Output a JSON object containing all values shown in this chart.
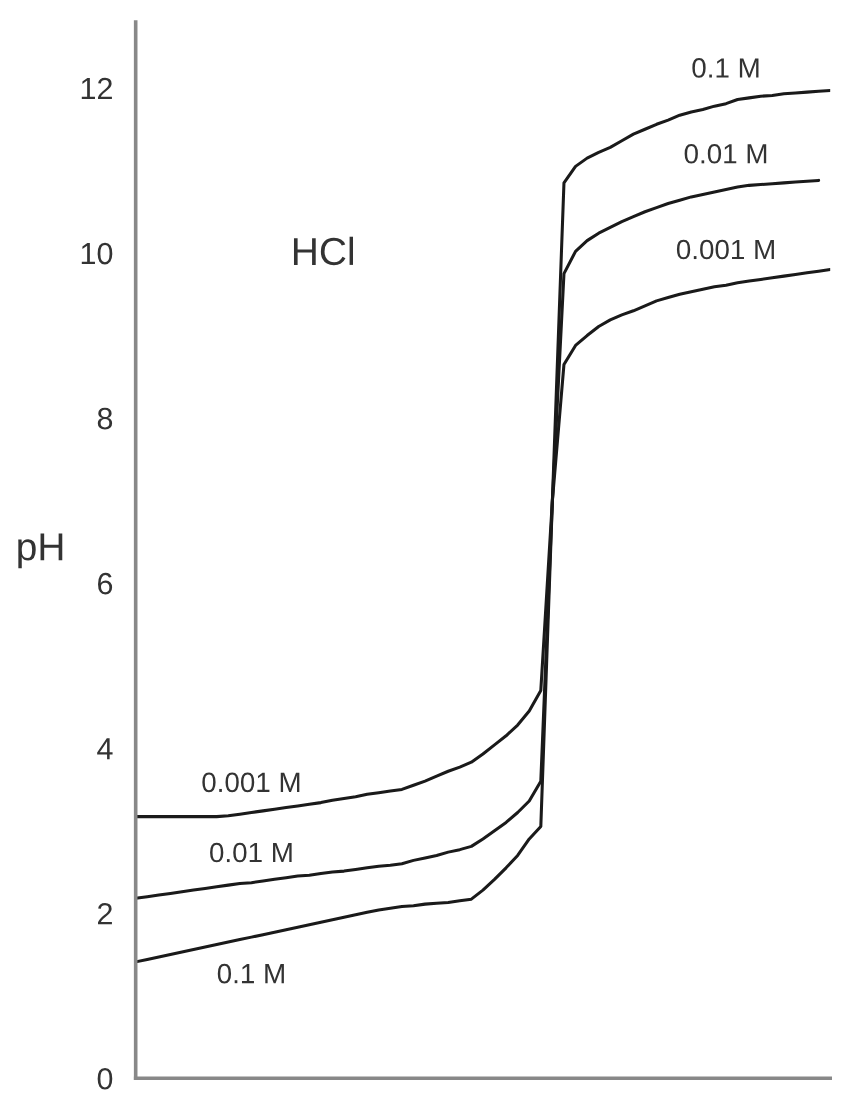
{
  "chart_data": {
    "type": "line",
    "ylabel": "pH",
    "annotations": [
      "HCl"
    ],
    "categories": [
      null,
      null,
      null,
      null,
      null,
      null,
      null,
      null,
      null,
      null,
      null,
      null,
      null,
      null,
      null,
      null,
      null,
      null,
      null,
      null,
      null,
      null,
      null,
      null,
      null,
      null,
      null,
      null,
      null,
      null,
      null,
      null,
      null,
      null,
      null,
      null,
      null,
      null,
      null,
      null,
      null,
      null,
      null,
      null,
      null,
      null,
      null,
      null,
      null,
      null,
      null,
      null,
      null,
      null,
      null,
      null,
      null,
      null,
      null,
      null,
      null
    ],
    "series": [
      {
        "name": "0.1 M",
        "color": "#1a1a1a",
        "values": [
          1.41,
          1.44,
          1.47,
          1.5,
          1.53,
          1.56,
          1.59,
          1.62,
          1.65,
          1.68,
          1.71,
          1.74,
          1.77,
          1.8,
          1.83,
          1.86,
          1.89,
          1.92,
          1.95,
          1.98,
          2.01,
          2.04,
          2.06,
          2.08,
          2.09,
          2.11,
          2.12,
          2.13,
          2.15,
          2.17,
          2.28,
          2.41,
          2.55,
          2.7,
          2.9,
          3.05,
          7,
          10.85,
          11.05,
          11.15,
          11.22,
          11.28,
          11.36,
          11.44,
          11.5,
          11.56,
          11.61,
          11.67,
          11.71,
          11.74,
          11.78,
          11.81,
          11.86,
          11.88,
          11.9,
          11.91,
          11.93,
          11.94,
          11.95,
          11.96,
          11.97
        ]
      },
      {
        "name": "0.01 M",
        "color": "#1a1a1a",
        "values": [
          2.18,
          2.2,
          2.22,
          2.24,
          2.26,
          2.28,
          2.3,
          2.32,
          2.34,
          2.36,
          2.37,
          2.39,
          2.41,
          2.43,
          2.45,
          2.46,
          2.48,
          2.5,
          2.51,
          2.53,
          2.55,
          2.57,
          2.58,
          2.6,
          2.64,
          2.67,
          2.7,
          2.74,
          2.77,
          2.81,
          2.9,
          3.0,
          3.1,
          3.22,
          3.36,
          3.6,
          7,
          9.75,
          10.02,
          10.15,
          10.24,
          10.31,
          10.38,
          10.44,
          10.5,
          10.55,
          10.6,
          10.64,
          10.68,
          10.71,
          10.74,
          10.77,
          10.8,
          10.82,
          10.83,
          10.84,
          10.85,
          10.86,
          10.87,
          10.88,
          null
        ]
      },
      {
        "name": "0.001 M",
        "color": "#1a1a1a",
        "values": [
          3.17,
          3.17,
          3.17,
          3.17,
          3.17,
          3.17,
          3.17,
          3.17,
          3.18,
          3.2,
          3.22,
          3.24,
          3.26,
          3.28,
          3.3,
          3.32,
          3.34,
          3.37,
          3.39,
          3.41,
          3.44,
          3.46,
          3.48,
          3.5,
          3.55,
          3.6,
          3.66,
          3.72,
          3.77,
          3.83,
          3.93,
          4.04,
          4.15,
          4.28,
          4.45,
          4.7,
          7,
          8.65,
          8.88,
          9.0,
          9.11,
          9.19,
          9.25,
          9.3,
          9.36,
          9.42,
          9.46,
          9.5,
          9.53,
          9.56,
          9.59,
          9.61,
          9.64,
          9.66,
          9.68,
          9.7,
          9.72,
          9.74,
          9.76,
          9.78,
          9.8
        ]
      }
    ],
    "ylim": [
      0,
      12.8
    ],
    "yticks": [
      0,
      2,
      4,
      6,
      8,
      10,
      12
    ],
    "grid": false,
    "legend": false,
    "marker": "none",
    "line_style": "solid",
    "tick_labels": "y"
  }
}
